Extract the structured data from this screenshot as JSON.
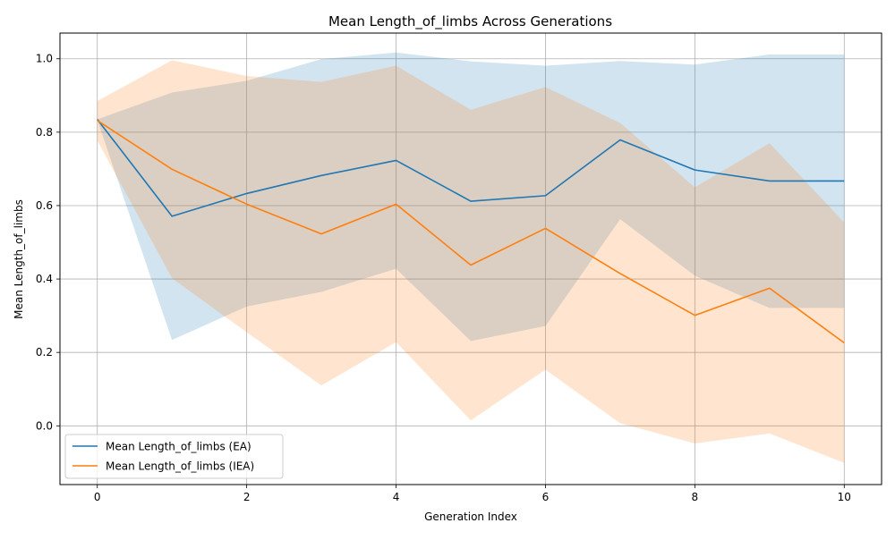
{
  "chart_data": {
    "type": "line",
    "title": "Mean Length_of_limbs Across Generations",
    "xlabel": "Generation Index",
    "ylabel": "Mean Length_of_limbs",
    "xlim": [
      -0.5,
      10.5
    ],
    "ylim": [
      -0.16,
      1.07
    ],
    "xticks": [
      0,
      2,
      4,
      6,
      8,
      10
    ],
    "yticks": [
      0.0,
      0.2,
      0.4,
      0.6,
      0.8,
      1.0
    ],
    "ytick_labels": [
      "0.0",
      "0.2",
      "0.4",
      "0.6",
      "0.8",
      "1.0"
    ],
    "grid": true,
    "legend_position": "lower-left",
    "x": [
      0,
      1,
      2,
      3,
      4,
      5,
      6,
      7,
      8,
      9,
      10
    ],
    "series": [
      {
        "name": "Mean Length_of_limbs (EA)",
        "color": "#1f77b4",
        "band_color": "#1f77b4",
        "values": [
          0.835,
          0.571,
          0.633,
          0.682,
          0.723,
          0.612,
          0.627,
          0.779,
          0.697,
          0.667,
          0.667
        ],
        "lower": [
          0.833,
          0.234,
          0.325,
          0.365,
          0.428,
          0.231,
          0.272,
          0.563,
          0.409,
          0.321,
          0.321
        ],
        "upper": [
          0.835,
          0.908,
          0.94,
          0.999,
          1.017,
          0.993,
          0.981,
          0.994,
          0.984,
          1.012,
          1.012
        ]
      },
      {
        "name": "Mean Length_of_limbs (IEA)",
        "color": "#ff7f0e",
        "band_color": "#ff7f0e",
        "values": [
          0.832,
          0.699,
          0.604,
          0.523,
          0.604,
          0.438,
          0.538,
          0.415,
          0.301,
          0.375,
          0.226
        ],
        "lower": [
          0.777,
          0.402,
          0.255,
          0.11,
          0.228,
          0.015,
          0.153,
          0.007,
          -0.048,
          -0.021,
          -0.101
        ],
        "upper": [
          0.885,
          0.996,
          0.953,
          0.937,
          0.981,
          0.861,
          0.923,
          0.825,
          0.65,
          0.77,
          0.554
        ]
      }
    ]
  }
}
